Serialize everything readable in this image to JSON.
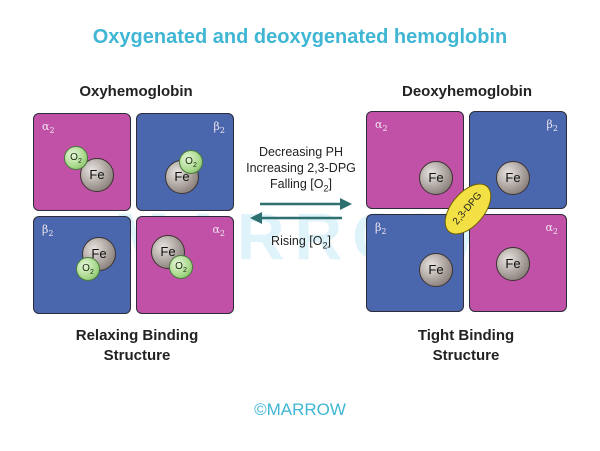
{
  "title": "Oxygenated and deoxygenated hemoglobin",
  "left_panel": {
    "heading": "Oxyhemoglobin",
    "structure_line1": "Relaxing Binding",
    "structure_line2": "Structure",
    "quadrants": [
      {
        "chain": "α",
        "sub": "2"
      },
      {
        "chain": "β",
        "sub": "2"
      },
      {
        "chain": "β",
        "sub": "2"
      },
      {
        "chain": "α",
        "sub": "2"
      }
    ]
  },
  "right_panel": {
    "heading": "Deoxyhemoglobin",
    "structure_line1": "Tight Binding",
    "structure_line2": "Structure",
    "dpg_label": "2,3-DPG",
    "quadrants": [
      {
        "chain": "α",
        "sub": "2"
      },
      {
        "chain": "β",
        "sub": "2"
      },
      {
        "chain": "β",
        "sub": "2"
      },
      {
        "chain": "α",
        "sub": "2"
      }
    ]
  },
  "iron_label": "Fe",
  "oxygen": {
    "base": "O",
    "sub": "2"
  },
  "conditions": {
    "line1": "Decreasing PH",
    "line2": "Increasing 2,3-DPG",
    "line3_prefix": "Falling [O",
    "line3_sub": "2",
    "line3_suffix": "]",
    "rising_prefix": "Rising [O",
    "rising_sub": "2",
    "rising_suffix": "]"
  },
  "watermark": "MARROW",
  "copyright": "©MARROW",
  "colors": {
    "alpha": "#c051a7",
    "beta": "#4a66ad",
    "title": "#3fb6d3",
    "arrow": "#2e6f6f",
    "dpg": "#f3e045"
  }
}
